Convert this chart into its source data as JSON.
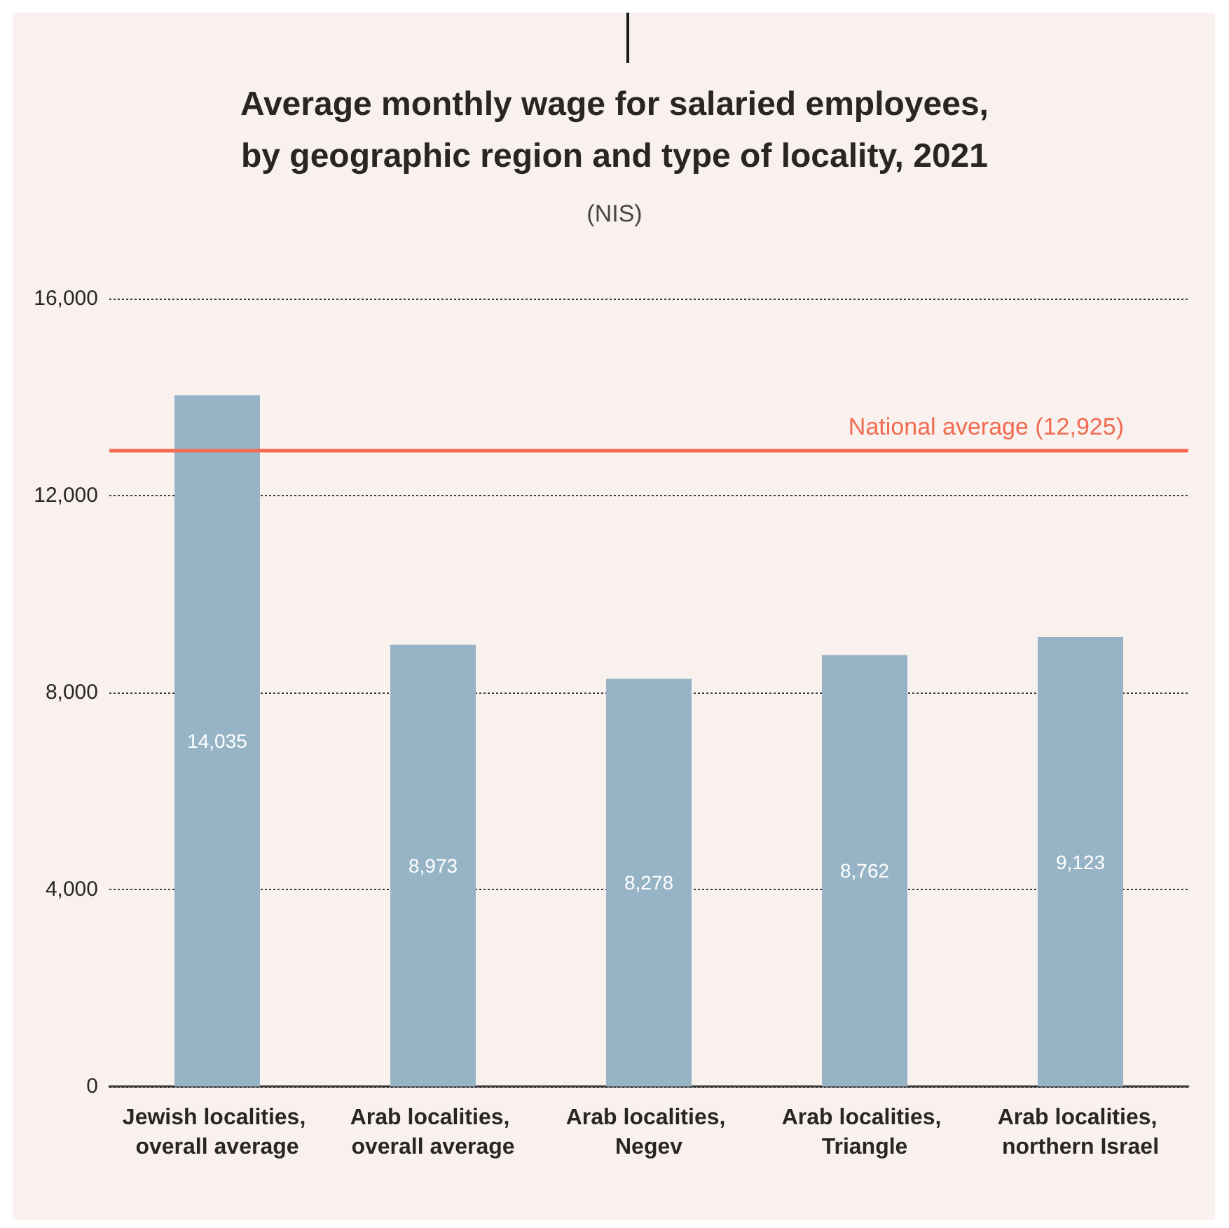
{
  "chart_data": {
    "type": "bar",
    "title": "Average monthly wage for salaried employees, by geographic region and type of locality, 2021",
    "subtitle": "(NIS)",
    "categories": [
      "Jewish localities, overall average",
      "Arab localities, overall average",
      "Arab localities, Negev",
      "Arab localities, Triangle",
      "Arab localities, northern Israel"
    ],
    "values": [
      14035,
      8973,
      8278,
      8762,
      9123
    ],
    "color": "#97b4c6",
    "value_labels": [
      "14,035",
      "8,973",
      "8,278",
      "8,762",
      "9,123"
    ],
    "ylim": [
      0,
      16000
    ],
    "yticks": [
      0,
      {
        "value": 4000,
        "label": "4,000"
      },
      {
        "value": 8000,
        "label": "8,000"
      },
      {
        "value": 12000,
        "label": "12,000"
      },
      {
        "value": 16000,
        "label": "16,000"
      }
    ],
    "grid": "y",
    "ref_lines": [
      {
        "axis": "y",
        "value": 12925,
        "label": "National average (12,925)",
        "color": "#f26a50",
        "line_style": "solid"
      }
    ]
  }
}
